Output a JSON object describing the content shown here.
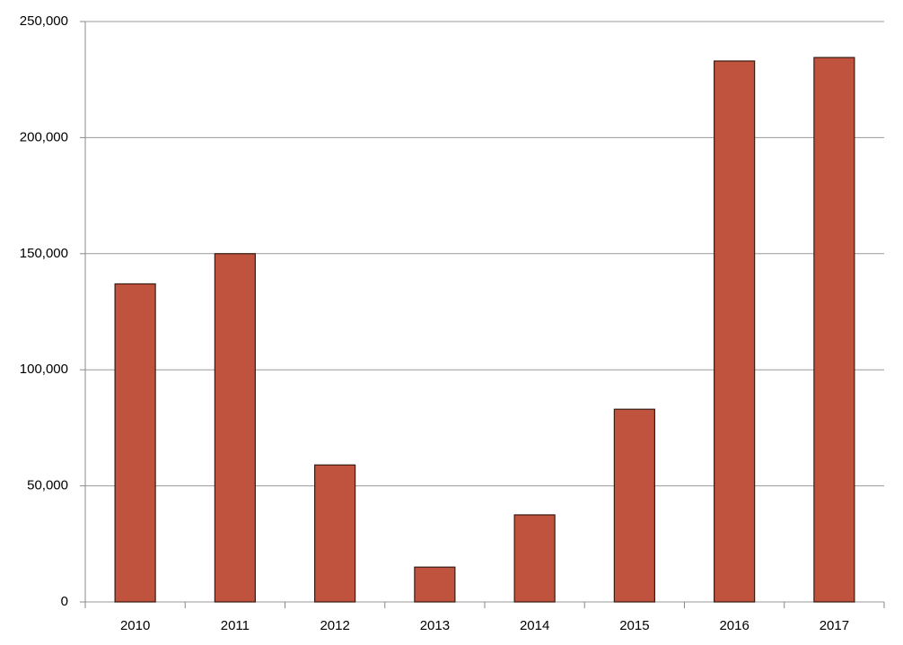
{
  "chart_data": {
    "type": "bar",
    "categories": [
      "2010",
      "2011",
      "2012",
      "2013",
      "2014",
      "2015",
      "2016",
      "2017"
    ],
    "values": [
      137000,
      150000,
      59000,
      15000,
      37500,
      83000,
      233000,
      234500
    ],
    "color": "#c0533d",
    "ylim": [
      0,
      250000
    ],
    "yticks": [
      0,
      {
        "value": 50000,
        "label": "50,000"
      },
      {
        "value": 100000,
        "label": "100,000"
      },
      {
        "value": 150000,
        "label": "150,000"
      },
      {
        "value": 200000,
        "label": "200,000"
      },
      {
        "value": 250000,
        "label": "250,000"
      }
    ],
    "grid": true
  }
}
